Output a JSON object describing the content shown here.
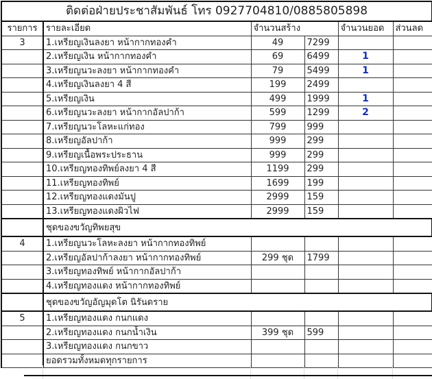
{
  "title": "ติดต่อฝ่ายประชาสัมพันธ์  โทร 0927704810/0885805898",
  "headers": {
    "item": "รายการ",
    "detail": "รายละเอียด",
    "built": "จำนวนสร้าง",
    "ordered": "จำนวนยอด",
    "discount": "ส่วนลด"
  },
  "sections": [
    {
      "number": "3",
      "rows": [
        {
          "detail": "1.เหรียญเงินลงยา หน้ากากทองคำ",
          "built": "49",
          "price": "7299",
          "ordered": ""
        },
        {
          "detail": "2.เหรียญเงิน  หน้ากากทองคำ",
          "built": "69",
          "price": "6499",
          "ordered": "1"
        },
        {
          "detail": "3.เหรียญนวะลงยา หน้ากากทองคำ",
          "built": "79",
          "price": "5499",
          "ordered": "1"
        },
        {
          "detail": "4.เหรียญเงินลงยา 4 สี",
          "built": "199",
          "price": "2499",
          "ordered": ""
        },
        {
          "detail": "5.เหรียญเงิน",
          "built": "499",
          "price": "1999",
          "ordered": "1"
        },
        {
          "detail": "6.เหรียญนวะลงยา หน้ากากอัลปาก้า",
          "built": "599",
          "price": "1299",
          "ordered": "2"
        },
        {
          "detail": "7.เหรียญนวะโลหะแก่ทอง",
          "built": "799",
          "price": "999",
          "ordered": ""
        },
        {
          "detail": "8.เหรียญอัลปาก้า",
          "built": "999",
          "price": "299",
          "ordered": ""
        },
        {
          "detail": "9.เหรียญเนื้อพระประธาน",
          "built": "999",
          "price": "299",
          "ordered": ""
        },
        {
          "detail": "10.เหรียญทองทิพย์ลงยา 4 สี",
          "built": "1199",
          "price": "299",
          "ordered": ""
        },
        {
          "detail": "11.เหรียญทองทิพย์",
          "built": "1699",
          "price": "199",
          "ordered": ""
        },
        {
          "detail": "12.เหรียญทองแดงมันปู",
          "built": "2999",
          "price": "159",
          "ordered": ""
        },
        {
          "detail": "13.เหรียญทองแดงผิวไฟ",
          "built": "2999",
          "price": "159",
          "ordered": ""
        }
      ]
    },
    {
      "heading": "ชุดของขวัญทิพยสุข",
      "number": "4",
      "rows": [
        {
          "detail": "1.เหรียญนวะโลหะลงยา หน้ากากทองทิพย์",
          "built": "",
          "price": "",
          "ordered": ""
        },
        {
          "detail": "2.เหรียญอัลปาก้าลงยา หน้ากากทองทิพย์",
          "built": "299 ชุด",
          "price": "1799",
          "ordered": ""
        },
        {
          "detail": "3.เหรียญทองทิพย์ หน้ากากอัลปาก้า",
          "built": "",
          "price": "",
          "ordered": ""
        },
        {
          "detail": "4.เหรียญทองแดง หน้ากากทองทิพย์",
          "built": "",
          "price": "",
          "ordered": ""
        }
      ]
    },
    {
      "heading": "ชุดของขวัญอัญมุดโต นิรันดราย",
      "number": "5",
      "rows": [
        {
          "detail": "1.เหรียญทองแดง กนกแดง",
          "built": "",
          "price": "",
          "ordered": ""
        },
        {
          "detail": "2.เหรียญทองแดง กนกน้ำเงิน",
          "built": "399 ชุด",
          "price": "599",
          "ordered": ""
        },
        {
          "detail": "3.เหรียญทองแดง กนกขาว",
          "built": "",
          "price": "",
          "ordered": ""
        },
        {
          "detail": "ยอดรวมทั้งหมดทุกรายการ",
          "built": "",
          "price": "",
          "ordered": ""
        }
      ]
    }
  ],
  "colors": {
    "ordered_text": "#1030c0"
  }
}
